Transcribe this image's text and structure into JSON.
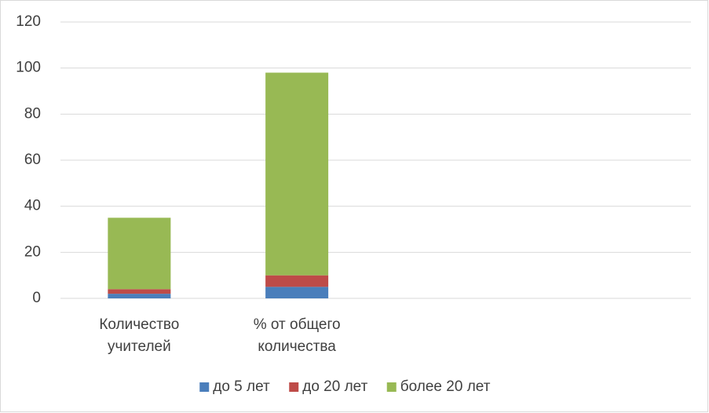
{
  "chart_data": {
    "type": "stacked_bar",
    "categories": [
      "Количество учителей",
      "% от общего количества",
      null,
      null
    ],
    "series": [
      {
        "name": "до 5 лет",
        "color": "#4a7ebb",
        "values": [
          2,
          5,
          null,
          null
        ]
      },
      {
        "name": "до 20 лет",
        "color": "#be4b48",
        "values": [
          2,
          5,
          null,
          null
        ]
      },
      {
        "name": "более 20 лет",
        "color": "#98b954",
        "values": [
          31,
          88,
          null,
          null
        ]
      }
    ],
    "ylim": [
      0,
      120
    ],
    "yticks": [
      0,
      20,
      40,
      60,
      80,
      100,
      120
    ],
    "grid": true,
    "legend": "bottom"
  }
}
